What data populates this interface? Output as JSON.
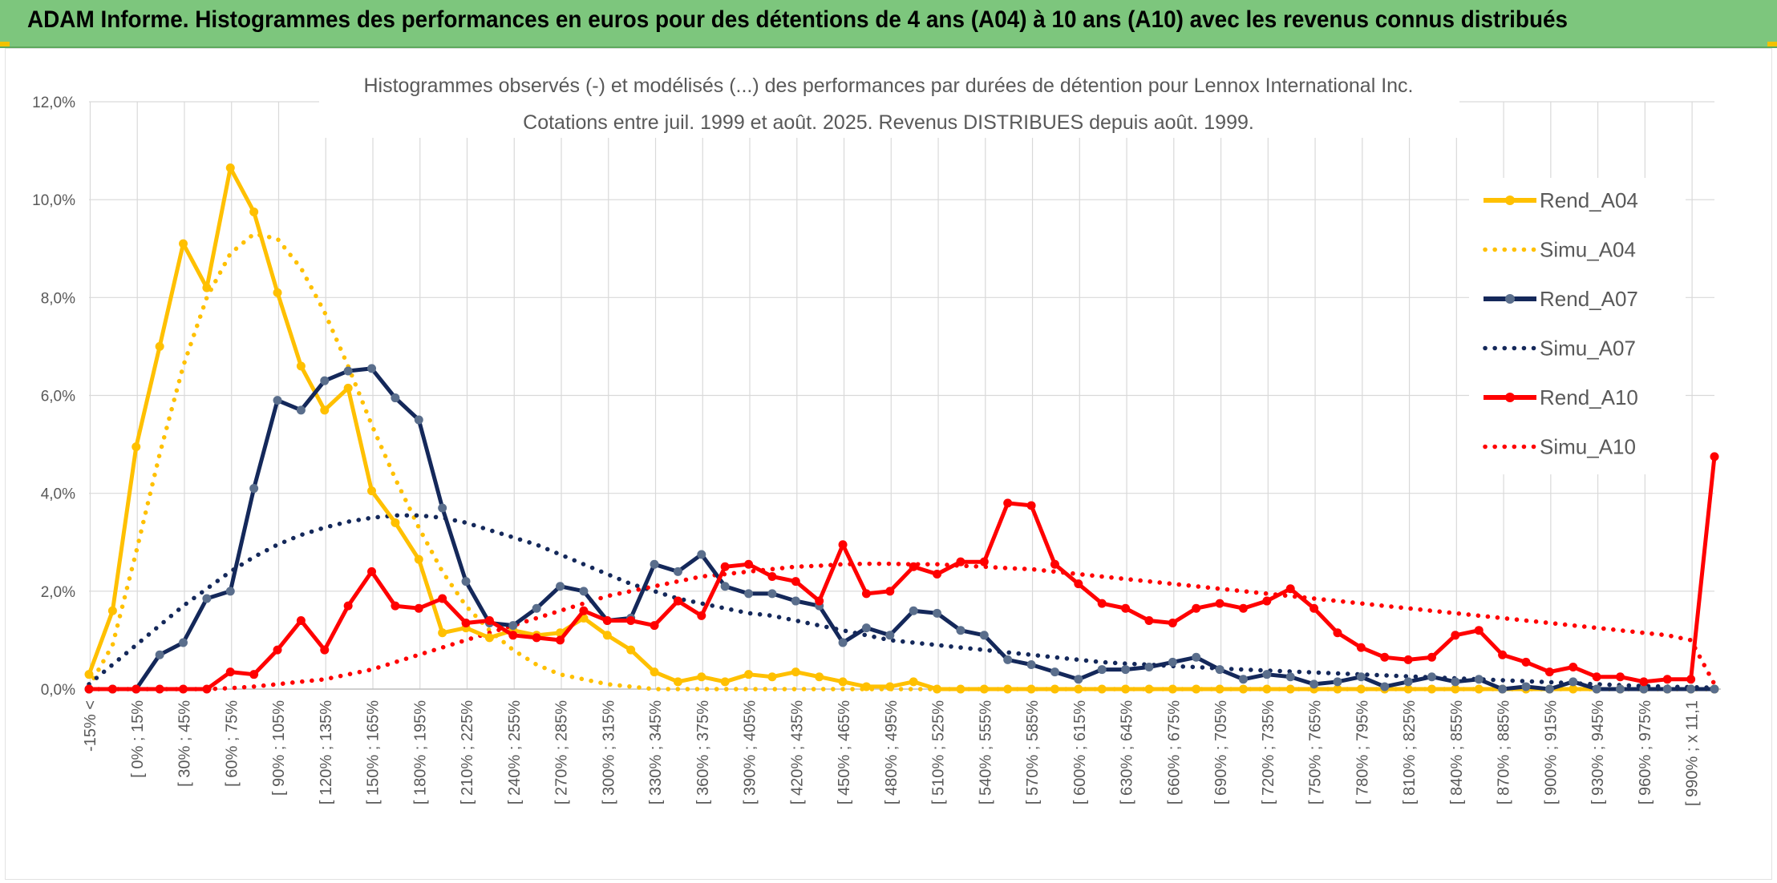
{
  "banner": {
    "title": "ADAM Informe. Histogrammes des performances en euros pour des détentions de 4 ans (A04) à 10 ans (A10) avec les revenus connus distribués"
  },
  "colors": {
    "banner_bg": "#7dc67d",
    "A04": "#ffc000",
    "A07": "#14285a",
    "A07_marker": "#5a6e8c",
    "A10": "#ff0000",
    "grid": "#d9d9d9",
    "text": "#595959"
  },
  "chart_data": {
    "type": "line",
    "title_line1": "Histogrammes observés (-) et modélisés (...) des performances par durées de détention pour Lennox International Inc.",
    "title_line2": "Cotations entre juil. 1999 et août. 2025. Revenus DISTRIBUES depuis août. 1999.",
    "ylim": [
      0,
      12
    ],
    "y_ticks": [
      "0,0%",
      "2,0%",
      "4,0%",
      "6,0%",
      "8,0%",
      "10,0%",
      "12,0%"
    ],
    "grid": true,
    "legend_position": "right",
    "x_labels": [
      "-15% <",
      "[ 0% ; 15%",
      "[ 30% ; 45%",
      "[ 60% ; 75%",
      "[ 90% ; 105%",
      "[ 120% ; 135%",
      "[ 150% ; 165%",
      "[ 180% ; 195%",
      "[ 210% ; 225%",
      "[ 240% ; 255%",
      "[ 270% ; 285%",
      "[ 300% ; 315%",
      "[ 330% ; 345%",
      "[ 360% ; 375%",
      "[ 390% ; 405%",
      "[ 420% ; 435%",
      "[ 450% ; 465%",
      "[ 480% ; 495%",
      "[ 510% ; 525%",
      "[ 540% ; 555%",
      "[ 570% ; 585%",
      "[ 600% ; 615%",
      "[ 630% ; 645%",
      "[ 660% ; 675%",
      "[ 690% ; 705%",
      "[ 720% ; 735%",
      "[ 750% ; 765%",
      "[ 780% ; 795%",
      "[ 810% ; 825%",
      "[ 840% ; 855%",
      "[ 870% ; 885%",
      "[ 900% ; 915%",
      "[ 930% ; 945%",
      "[ 960% ; 975%",
      "[ 990% ; x 11,1"
    ],
    "series": [
      {
        "name": "Rend_A04",
        "style": "solid",
        "color": "#ffc000",
        "marker": true,
        "values": [
          0.3,
          1.6,
          4.95,
          7.0,
          9.1,
          8.2,
          10.65,
          9.75,
          8.1,
          6.6,
          5.7,
          6.15,
          4.05,
          3.4,
          2.65,
          1.15,
          1.25,
          1.05,
          1.2,
          1.1,
          1.15,
          1.45,
          1.1,
          0.8,
          0.35,
          0.15,
          0.25,
          0.15,
          0.3,
          0.25,
          0.35,
          0.25,
          0.15,
          0.05,
          0.05,
          0.15,
          0,
          0,
          0,
          0,
          0,
          0,
          0,
          0,
          0,
          0,
          0,
          0,
          0,
          0,
          0,
          0,
          0,
          0,
          0,
          0,
          0,
          0,
          0,
          0,
          0,
          0,
          0,
          0,
          0,
          0,
          0,
          0,
          0,
          0
        ]
      },
      {
        "name": "Simu_A04",
        "style": "dotted",
        "color": "#ffc000",
        "marker": false,
        "values": [
          0.05,
          0.9,
          2.8,
          4.8,
          6.6,
          8.0,
          8.9,
          9.3,
          9.2,
          8.6,
          7.7,
          6.6,
          5.4,
          4.3,
          3.3,
          2.4,
          1.7,
          1.2,
          0.8,
          0.5,
          0.3,
          0.2,
          0.1,
          0.05,
          0,
          0,
          0,
          0,
          0,
          0,
          0,
          0,
          0,
          0,
          0,
          0,
          0,
          0,
          0,
          0,
          0,
          0,
          0,
          0,
          0,
          0,
          0,
          0,
          0,
          0,
          0,
          0,
          0,
          0,
          0,
          0,
          0,
          0,
          0,
          0,
          0,
          0,
          0,
          0,
          0,
          0,
          0,
          0,
          0,
          0
        ]
      },
      {
        "name": "Rend_A07",
        "style": "solid",
        "color": "#14285a",
        "marker": true,
        "values": [
          0,
          0,
          0,
          0.7,
          0.95,
          1.85,
          2.0,
          4.1,
          5.9,
          5.7,
          6.3,
          6.5,
          6.55,
          5.95,
          5.5,
          3.7,
          2.2,
          1.35,
          1.3,
          1.65,
          2.1,
          2.0,
          1.4,
          1.45,
          2.55,
          2.4,
          2.75,
          2.1,
          1.95,
          1.95,
          1.8,
          1.7,
          0.95,
          1.25,
          1.1,
          1.6,
          1.55,
          1.2,
          1.1,
          0.6,
          0.5,
          0.35,
          0.2,
          0.4,
          0.4,
          0.45,
          0.55,
          0.65,
          0.4,
          0.2,
          0.3,
          0.25,
          0.1,
          0.15,
          0.25,
          0.05,
          0.15,
          0.25,
          0.15,
          0.2,
          0,
          0.05,
          0,
          0.15,
          0,
          0,
          0,
          0,
          0,
          0
        ]
      },
      {
        "name": "Simu_A07",
        "style": "dotted",
        "color": "#14285a",
        "marker": false,
        "values": [
          0.1,
          0.5,
          0.9,
          1.3,
          1.7,
          2.05,
          2.4,
          2.7,
          2.95,
          3.15,
          3.3,
          3.42,
          3.5,
          3.55,
          3.55,
          3.5,
          3.4,
          3.25,
          3.1,
          2.95,
          2.75,
          2.55,
          2.35,
          2.15,
          2.0,
          1.85,
          1.75,
          1.65,
          1.55,
          1.5,
          1.4,
          1.3,
          1.2,
          1.1,
          1.0,
          0.95,
          0.9,
          0.85,
          0.8,
          0.75,
          0.7,
          0.65,
          0.6,
          0.55,
          0.52,
          0.5,
          0.47,
          0.45,
          0.42,
          0.4,
          0.38,
          0.36,
          0.34,
          0.32,
          0.3,
          0.28,
          0.26,
          0.24,
          0.22,
          0.2,
          0.18,
          0.16,
          0.14,
          0.12,
          0.1,
          0.08,
          0.06,
          0.05,
          0.04,
          0.03
        ]
      },
      {
        "name": "Rend_A10",
        "style": "solid",
        "color": "#ff0000",
        "marker": true,
        "values": [
          0,
          0,
          0,
          0,
          0,
          0,
          0.35,
          0.3,
          0.8,
          1.4,
          0.8,
          1.7,
          2.4,
          1.7,
          1.65,
          1.85,
          1.35,
          1.4,
          1.1,
          1.05,
          1.0,
          1.6,
          1.4,
          1.4,
          1.3,
          1.8,
          1.5,
          2.5,
          2.55,
          2.3,
          2.2,
          1.8,
          2.95,
          1.95,
          2.0,
          2.5,
          2.35,
          2.6,
          2.6,
          3.8,
          3.75,
          2.55,
          2.15,
          1.75,
          1.65,
          1.4,
          1.35,
          1.65,
          1.75,
          1.65,
          1.8,
          2.05,
          1.65,
          1.15,
          0.85,
          0.65,
          0.6,
          0.65,
          1.1,
          1.2,
          0.7,
          0.55,
          0.35,
          0.45,
          0.25,
          0.25,
          0.15,
          0.2,
          0.2,
          4.75
        ]
      },
      {
        "name": "Simu_A10",
        "style": "dotted",
        "color": "#ff0000",
        "marker": false,
        "values": [
          0,
          0,
          0,
          0,
          0,
          0,
          0.02,
          0.05,
          0.1,
          0.15,
          0.2,
          0.3,
          0.4,
          0.55,
          0.7,
          0.85,
          1.0,
          1.15,
          1.3,
          1.45,
          1.6,
          1.75,
          1.9,
          2.0,
          2.1,
          2.2,
          2.3,
          2.35,
          2.4,
          2.45,
          2.5,
          2.52,
          2.55,
          2.56,
          2.56,
          2.55,
          2.55,
          2.52,
          2.5,
          2.47,
          2.45,
          2.4,
          2.35,
          2.3,
          2.25,
          2.2,
          2.15,
          2.1,
          2.05,
          2.0,
          1.95,
          1.9,
          1.85,
          1.8,
          1.75,
          1.7,
          1.65,
          1.6,
          1.55,
          1.5,
          1.45,
          1.4,
          1.35,
          1.3,
          1.25,
          1.2,
          1.15,
          1.1,
          1.0,
          0.1
        ]
      }
    ]
  }
}
